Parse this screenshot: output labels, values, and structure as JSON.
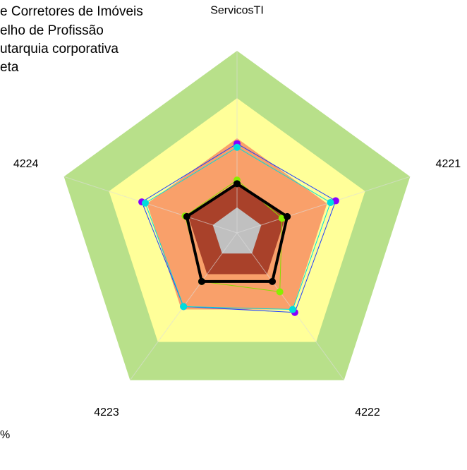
{
  "chart_data": {
    "type": "radar",
    "axes": [
      "ServicosTI",
      "4221",
      "4222",
      "4223",
      "4224"
    ],
    "rmax": 100,
    "rings": [
      {
        "value": 100,
        "color": "#b8e08a"
      },
      {
        "value": 74,
        "color": "#ffff99"
      },
      {
        "value": 52,
        "color": "#f9a06a"
      },
      {
        "value": 28,
        "color": "#a9412a"
      },
      {
        "value": 14,
        "color": "#c0c0c0"
      }
    ],
    "legend": [
      "e Corretores de Imóveis",
      "elho de Profissão",
      "utarquia corporativa",
      "eta"
    ],
    "footnote": "%",
    "series": [
      {
        "color": "#1f3fff",
        "point_color": "#8800ff",
        "values": [
          49,
          57,
          54,
          50,
          55
        ]
      },
      {
        "color": "#00dddd",
        "point_color": "#00dddd",
        "values": [
          47,
          54,
          52,
          50,
          53
        ]
      },
      {
        "color": "#88dd00",
        "point_color": "#88ee00",
        "values": [
          29,
          26,
          40,
          33,
          30
        ]
      },
      {
        "color": "#000000",
        "point_color": "#000000",
        "values": [
          27,
          29,
          33,
          33,
          29
        ]
      }
    ]
  }
}
